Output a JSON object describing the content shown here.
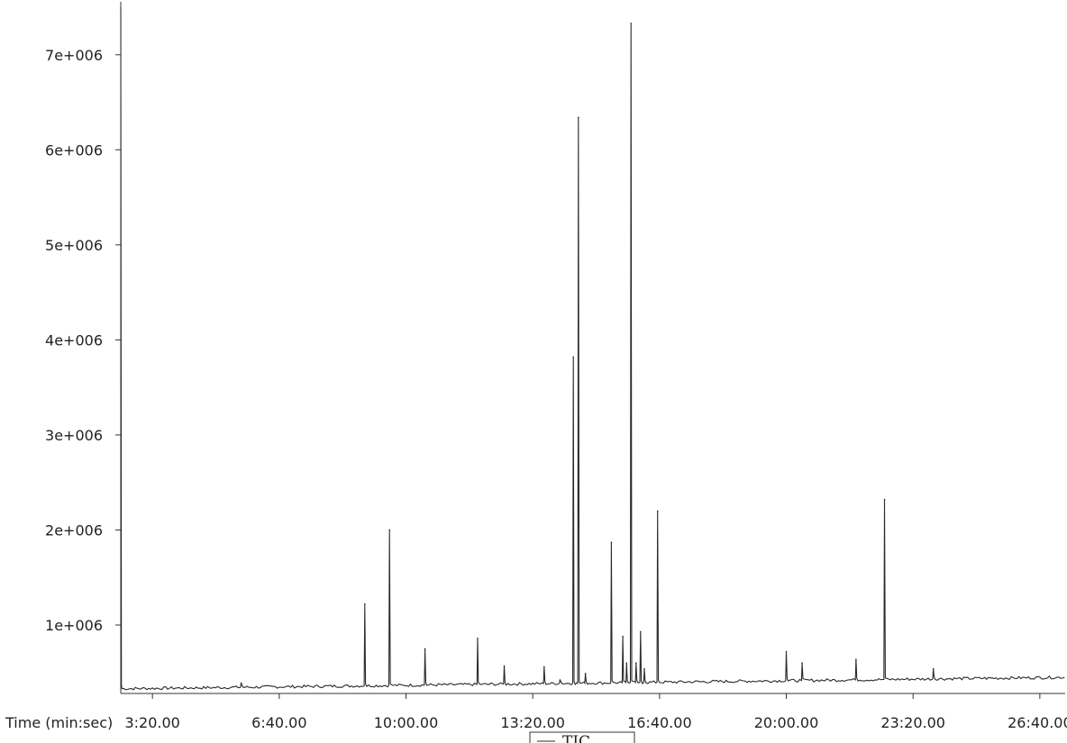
{
  "chart_data": {
    "type": "line",
    "title": "",
    "xlabel": "Time (min:sec)",
    "ylabel": "",
    "x_unit": "seconds",
    "xlim": [
      150,
      1640
    ],
    "ylim": [
      280000,
      7500000
    ],
    "y_ticks": [
      {
        "value": 1000000,
        "label": "1e+006"
      },
      {
        "value": 2000000,
        "label": "2e+006"
      },
      {
        "value": 3000000,
        "label": "3e+006"
      },
      {
        "value": 4000000,
        "label": "4e+006"
      },
      {
        "value": 5000000,
        "label": "5e+006"
      },
      {
        "value": 6000000,
        "label": "6e+006"
      },
      {
        "value": 7000000,
        "label": "7e+006"
      }
    ],
    "x_ticks": [
      {
        "value": 200,
        "label": "3:20.00"
      },
      {
        "value": 400,
        "label": "6:40.00"
      },
      {
        "value": 600,
        "label": "10:00.00"
      },
      {
        "value": 800,
        "label": "13:20.00"
      },
      {
        "value": 1000,
        "label": "16:40.00"
      },
      {
        "value": 1200,
        "label": "20:00.00"
      },
      {
        "value": 1400,
        "label": "23:20.00"
      },
      {
        "value": 1600,
        "label": "26:40.00"
      }
    ],
    "baseline": 330000,
    "series": [
      {
        "name": "TIC",
        "color": "#2a2a2a",
        "peaks": [
          {
            "x": 340,
            "y": 390000
          },
          {
            "x": 535,
            "y": 1220000
          },
          {
            "x": 574,
            "y": 2000000
          },
          {
            "x": 630,
            "y": 750000
          },
          {
            "x": 713,
            "y": 860000
          },
          {
            "x": 755,
            "y": 570000
          },
          {
            "x": 818,
            "y": 560000
          },
          {
            "x": 843,
            "y": 420000
          },
          {
            "x": 864,
            "y": 3820000
          },
          {
            "x": 872,
            "y": 6340000
          },
          {
            "x": 883,
            "y": 490000
          },
          {
            "x": 924,
            "y": 1870000
          },
          {
            "x": 942,
            "y": 880000
          },
          {
            "x": 948,
            "y": 600000
          },
          {
            "x": 955,
            "y": 7330000
          },
          {
            "x": 963,
            "y": 600000
          },
          {
            "x": 970,
            "y": 930000
          },
          {
            "x": 976,
            "y": 540000
          },
          {
            "x": 997,
            "y": 2200000
          },
          {
            "x": 1200,
            "y": 720000
          },
          {
            "x": 1225,
            "y": 600000
          },
          {
            "x": 1310,
            "y": 640000
          },
          {
            "x": 1355,
            "y": 2320000
          },
          {
            "x": 1432,
            "y": 540000
          }
        ]
      }
    ],
    "legend": {
      "position": "bottom-center",
      "label": "TIC"
    }
  }
}
